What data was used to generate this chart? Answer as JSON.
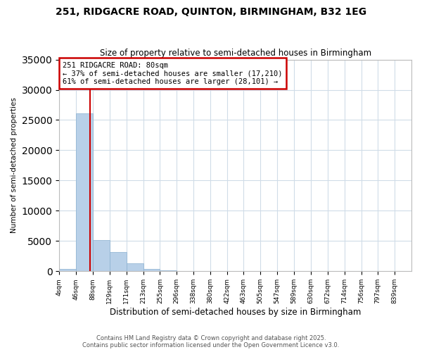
{
  "title": "251, RIDGACRE ROAD, QUINTON, BIRMINGHAM, B32 1EG",
  "subtitle": "Size of property relative to semi-detached houses in Birmingham",
  "xlabel": "Distribution of semi-detached houses by size in Birmingham",
  "ylabel": "Number of semi-detached properties",
  "property_size": 80,
  "annotation_title": "251 RIDGACRE ROAD: 80sqm",
  "annotation_line1": "← 37% of semi-detached houses are smaller (17,210)",
  "annotation_line2": "61% of semi-detached houses are larger (28,101) →",
  "footer_line1": "Contains HM Land Registry data © Crown copyright and database right 2025.",
  "footer_line2": "Contains public sector information licensed under the Open Government Licence v3.0.",
  "bin_labels": [
    "4sqm",
    "46sqm",
    "88sqm",
    "129sqm",
    "171sqm",
    "213sqm",
    "255sqm",
    "296sqm",
    "338sqm",
    "380sqm",
    "422sqm",
    "463sqm",
    "505sqm",
    "547sqm",
    "589sqm",
    "630sqm",
    "672sqm",
    "714sqm",
    "756sqm",
    "797sqm",
    "839sqm"
  ],
  "bin_edges": [
    4,
    46,
    88,
    129,
    171,
    213,
    255,
    296,
    338,
    380,
    422,
    463,
    505,
    547,
    589,
    630,
    672,
    714,
    756,
    797,
    839
  ],
  "bar_heights": [
    400,
    26100,
    5200,
    3200,
    1300,
    400,
    100,
    30,
    10,
    5,
    3,
    2,
    1,
    1,
    0,
    0,
    0,
    0,
    0,
    0
  ],
  "bar_color": "#b8d0e8",
  "bar_edgecolor": "#8ab0d0",
  "vline_color": "#cc0000",
  "annotation_box_edgecolor": "#cc0000",
  "background_color": "#ffffff",
  "grid_color": "#d0dce8",
  "ylim": [
    0,
    35000
  ],
  "yticks": [
    0,
    5000,
    10000,
    15000,
    20000,
    25000,
    30000,
    35000
  ],
  "figsize": [
    6.0,
    5.0
  ],
  "dpi": 100
}
